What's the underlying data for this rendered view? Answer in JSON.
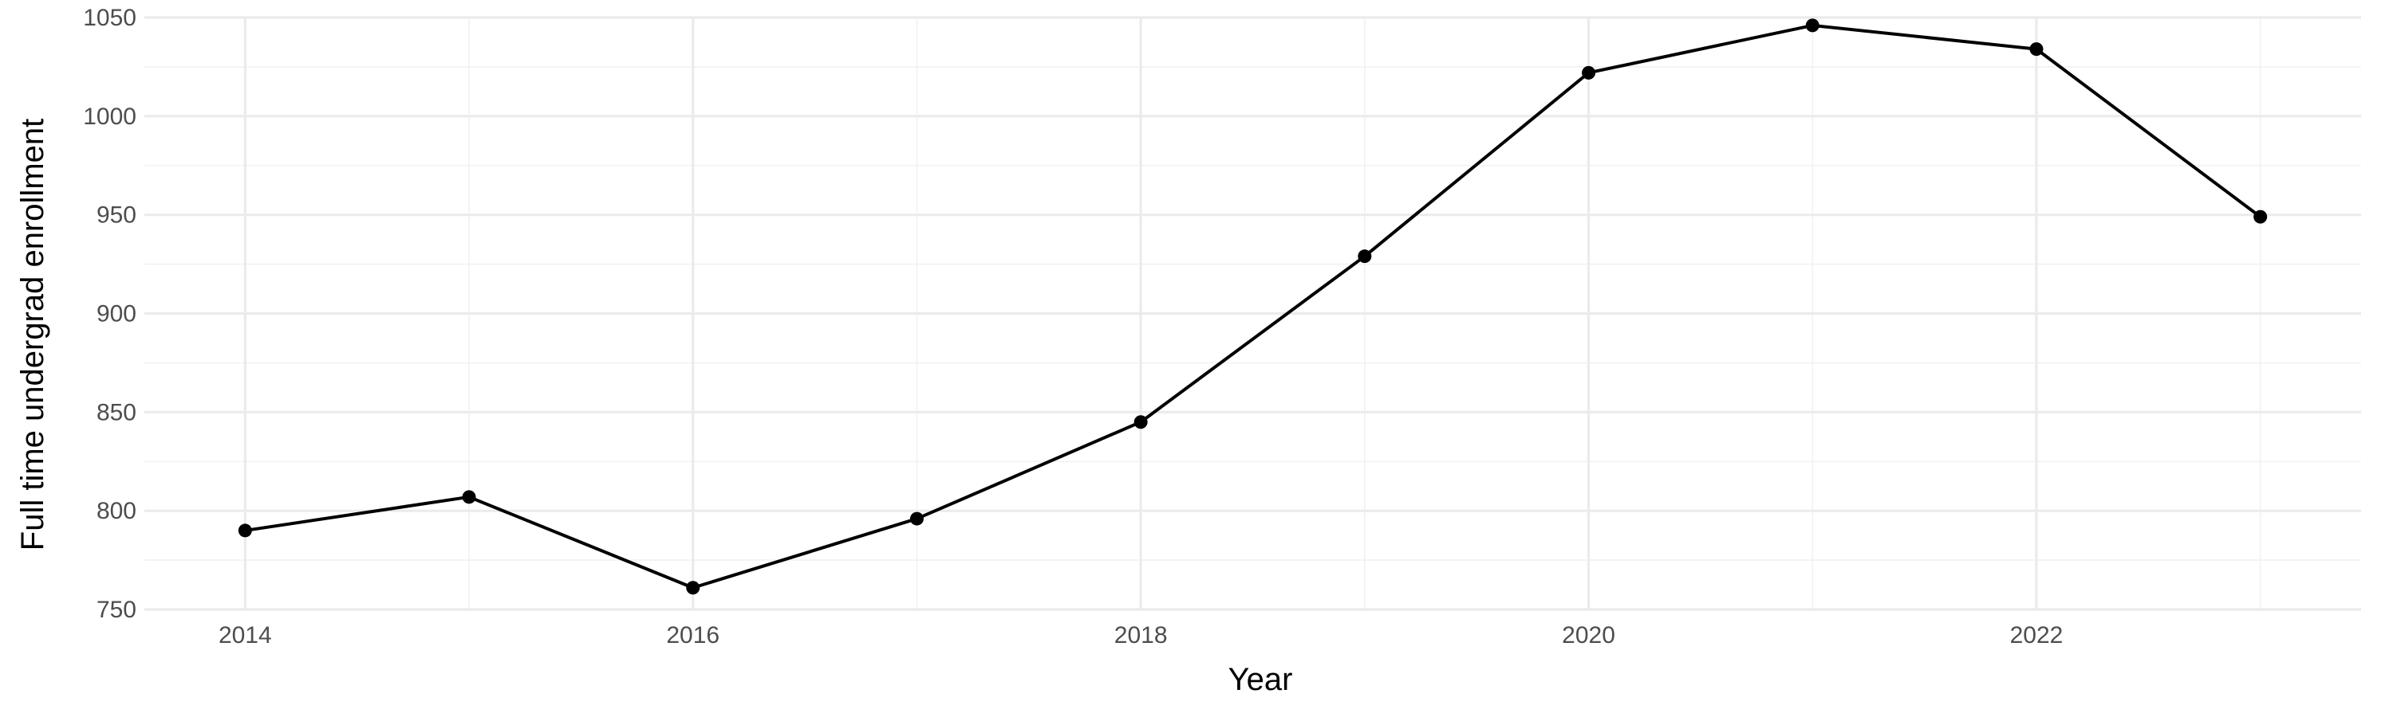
{
  "chart_data": {
    "type": "line",
    "title": "",
    "xlabel": "Year",
    "ylabel": "Full time undergrad enrollment",
    "x": [
      2014,
      2015,
      2016,
      2017,
      2018,
      2019,
      2020,
      2021,
      2022,
      2023
    ],
    "series": [
      {
        "values": [
          790,
          807,
          761,
          796,
          845,
          929,
          1022,
          1046,
          1034,
          949
        ],
        "color": "#000000"
      }
    ],
    "xlim": [
      2013.55,
      2023.45
    ],
    "ylim": [
      750,
      1050
    ],
    "x_ticks": [
      "2014",
      "2016",
      "2018",
      "2020",
      "2022"
    ],
    "y_ticks": [
      "750",
      "800",
      "850",
      "900",
      "950",
      "1000",
      "1050"
    ],
    "grid": true,
    "legend": "none"
  }
}
